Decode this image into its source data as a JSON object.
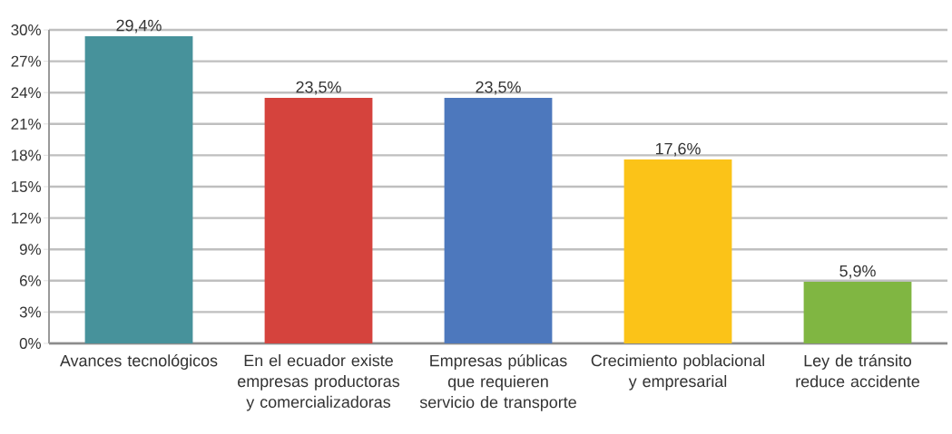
{
  "chart_data": {
    "type": "bar",
    "categories": [
      "Avances tecnológicos",
      "En el ecuador existe empresas productoras y comercializadoras",
      "Empresas  públicas que requieren servicio de transporte",
      "Crecimiento poblacional y empresarial",
      "Ley de tránsito reduce accidente"
    ],
    "values": [
      29.4,
      23.5,
      23.5,
      17.6,
      5.9
    ],
    "colors": [
      "#47929b",
      "#d5433d",
      "#4d78bd",
      "#fbc318",
      "#80b642"
    ],
    "value_labels": [
      "29,4%",
      "23,5%",
      "23,5%",
      "17,6%",
      "5,9%"
    ],
    "ylim": [
      0,
      30
    ],
    "yticks": [
      {
        "value": 0,
        "label": "0%"
      },
      {
        "value": 3,
        "label": "3%"
      },
      {
        "value": 6,
        "label": "6%"
      },
      {
        "value": 9,
        "label": "9%"
      },
      {
        "value": 12,
        "label": "12%"
      },
      {
        "value": 15,
        "label": "15%"
      },
      {
        "value": 18,
        "label": "18%"
      },
      {
        "value": 21,
        "label": "21%"
      },
      {
        "value": 24,
        "label": "24%"
      },
      {
        "value": 27,
        "label": "27%"
      },
      {
        "value": 30,
        "label": "30%"
      }
    ],
    "grid": "y"
  }
}
